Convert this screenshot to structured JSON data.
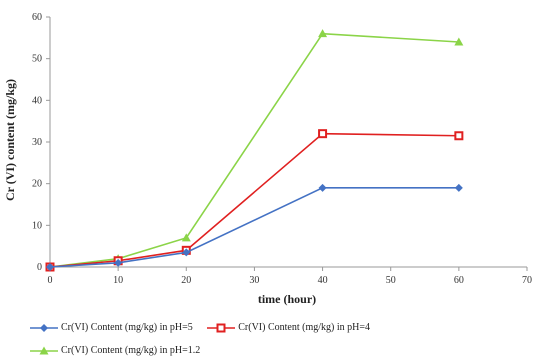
{
  "chart_data": {
    "type": "line",
    "xlabel": "time (hour)",
    "ylabel": "Cr (VI) content (mg/kg)",
    "xlim": [
      0,
      70
    ],
    "ylim": [
      0,
      60
    ],
    "xticks": [
      0,
      10,
      20,
      30,
      40,
      50,
      60,
      70
    ],
    "yticks": [
      0,
      10,
      20,
      30,
      40,
      50,
      60
    ],
    "x": [
      0,
      10,
      20,
      40,
      60
    ],
    "grid": false,
    "legend_position": "bottom",
    "series": [
      {
        "name": "Cr(VI) Content (mg/kg) in pH=5",
        "color": "#4472C4",
        "marker": "diamond",
        "values": [
          0,
          1,
          3.5,
          19,
          19
        ]
      },
      {
        "name": "Cr(VI) Content (mg/kg) in pH=4",
        "color": "#E02020",
        "marker": "square",
        "values": [
          0,
          1.5,
          4,
          32,
          31.5
        ]
      },
      {
        "name": "Cr(VI) Content (mg/kg) in pH=1.2",
        "color": "#8BD448",
        "marker": "triangle",
        "values": [
          0,
          2,
          7,
          56,
          54
        ]
      }
    ]
  }
}
